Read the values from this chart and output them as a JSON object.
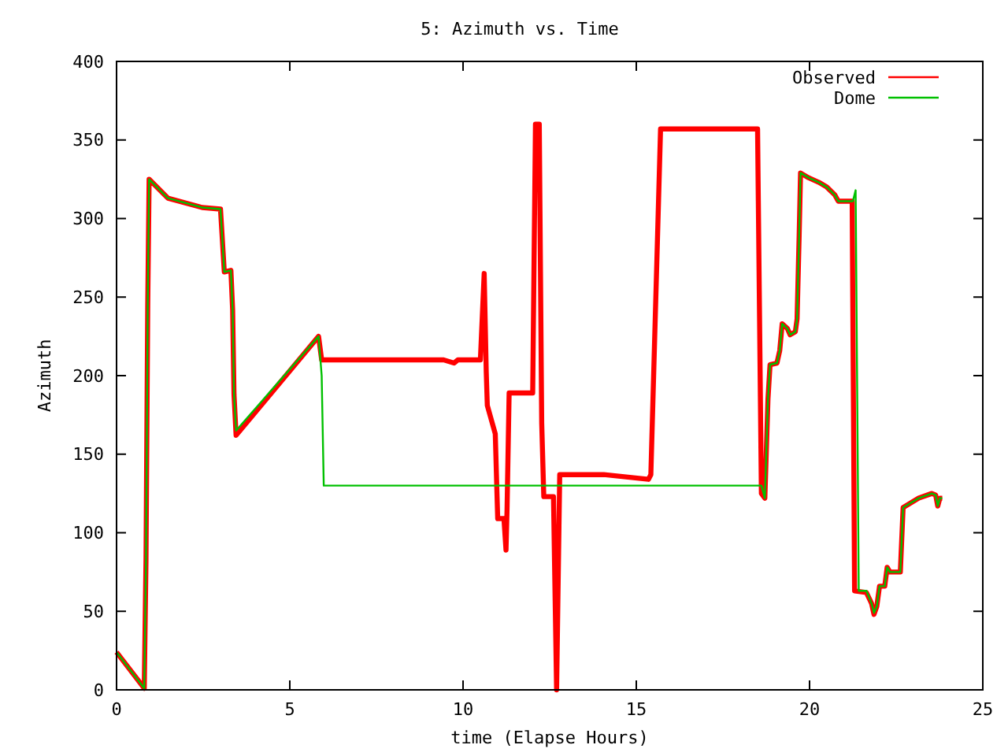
{
  "chart_data": {
    "type": "line",
    "title": "5: Azimuth vs. Time",
    "xlabel": "time (Elapse Hours)",
    "ylabel": "Azimuth",
    "xlim": [
      0,
      25
    ],
    "ylim": [
      0,
      400
    ],
    "xticks": [
      0,
      5,
      10,
      15,
      20,
      25
    ],
    "yticks": [
      0,
      50,
      100,
      150,
      200,
      250,
      300,
      350,
      400
    ],
    "grid": false,
    "legend": "top right",
    "line_style": "solid",
    "series": [
      {
        "name": "Observed",
        "color": "#ff0000",
        "x": [
          0,
          0.8,
          0.85,
          0.9,
          0.94,
          1.48,
          2.47,
          3.0,
          3.03,
          3.11,
          3.3,
          3.35,
          3.39,
          3.45,
          5.83,
          5.92,
          9.44,
          9.74,
          9.85,
          10.5,
          10.61,
          10.67,
          10.7,
          10.93,
          11.0,
          11.18,
          11.24,
          11.27,
          11.33,
          12.01,
          12.09,
          12.2,
          12.27,
          12.33,
          12.61,
          12.7,
          12.79,
          14.06,
          15.35,
          15.42,
          15.7,
          18.5,
          18.61,
          18.71,
          18.8,
          18.86,
          19.06,
          19.14,
          19.21,
          19.36,
          19.44,
          19.59,
          19.64,
          19.7,
          19.74,
          19.97,
          20.27,
          20.5,
          20.73,
          20.83,
          21.23,
          21.3,
          21.64,
          21.79,
          21.86,
          21.94,
          22.02,
          22.17,
          22.24,
          22.32,
          22.62,
          22.7,
          22.85,
          23.15,
          23.53,
          23.64,
          23.7,
          23.76,
          23.83
        ],
        "values": [
          24,
          1,
          83,
          245,
          325,
          313,
          307,
          306,
          295,
          266,
          267,
          242,
          188,
          162,
          225,
          210,
          210,
          208,
          210,
          210,
          265,
          202,
          181,
          163,
          109,
          109,
          89,
          115,
          189,
          189,
          360,
          360,
          170,
          123,
          123,
          0,
          137,
          137,
          134,
          137,
          357,
          357,
          125,
          122,
          185,
          207,
          208,
          216,
          233,
          230,
          226,
          228,
          236,
          289,
          329,
          326,
          323,
          320,
          315,
          311,
          311,
          63,
          62,
          55,
          48,
          53,
          66,
          66,
          78,
          75,
          75,
          116,
          118,
          122,
          125,
          124,
          117,
          122,
          122
        ]
      },
      {
        "name": "Dome",
        "color": "#00c000",
        "x": [
          0,
          0.8,
          0.85,
          0.9,
          0.94,
          1.48,
          2.47,
          3.0,
          3.03,
          3.11,
          3.3,
          3.35,
          3.39,
          3.45,
          5.83,
          5.92,
          5.98,
          18.61,
          18.71,
          18.8,
          18.86,
          19.06,
          19.14,
          19.21,
          19.36,
          19.44,
          19.59,
          19.64,
          19.7,
          19.74,
          19.97,
          20.27,
          20.5,
          20.73,
          20.83,
          21.25,
          21.33,
          21.42,
          21.64,
          21.79,
          21.86,
          21.94,
          22.02,
          22.17,
          22.24,
          22.32,
          22.62,
          22.7,
          22.85,
          23.15,
          23.53,
          23.64,
          23.7,
          23.76,
          23.83
        ],
        "values": [
          24,
          1,
          83,
          245,
          325,
          313,
          307,
          306,
          295,
          266,
          267,
          242,
          188,
          165,
          225,
          200,
          130,
          130,
          122,
          185,
          207,
          208,
          216,
          233,
          230,
          226,
          228,
          236,
          289,
          329,
          326,
          323,
          320,
          315,
          311,
          311,
          318,
          63,
          63,
          55,
          49,
          53,
          66,
          66,
          78,
          75,
          75,
          116,
          118,
          122,
          125,
          124,
          117,
          122,
          122
        ]
      }
    ]
  }
}
